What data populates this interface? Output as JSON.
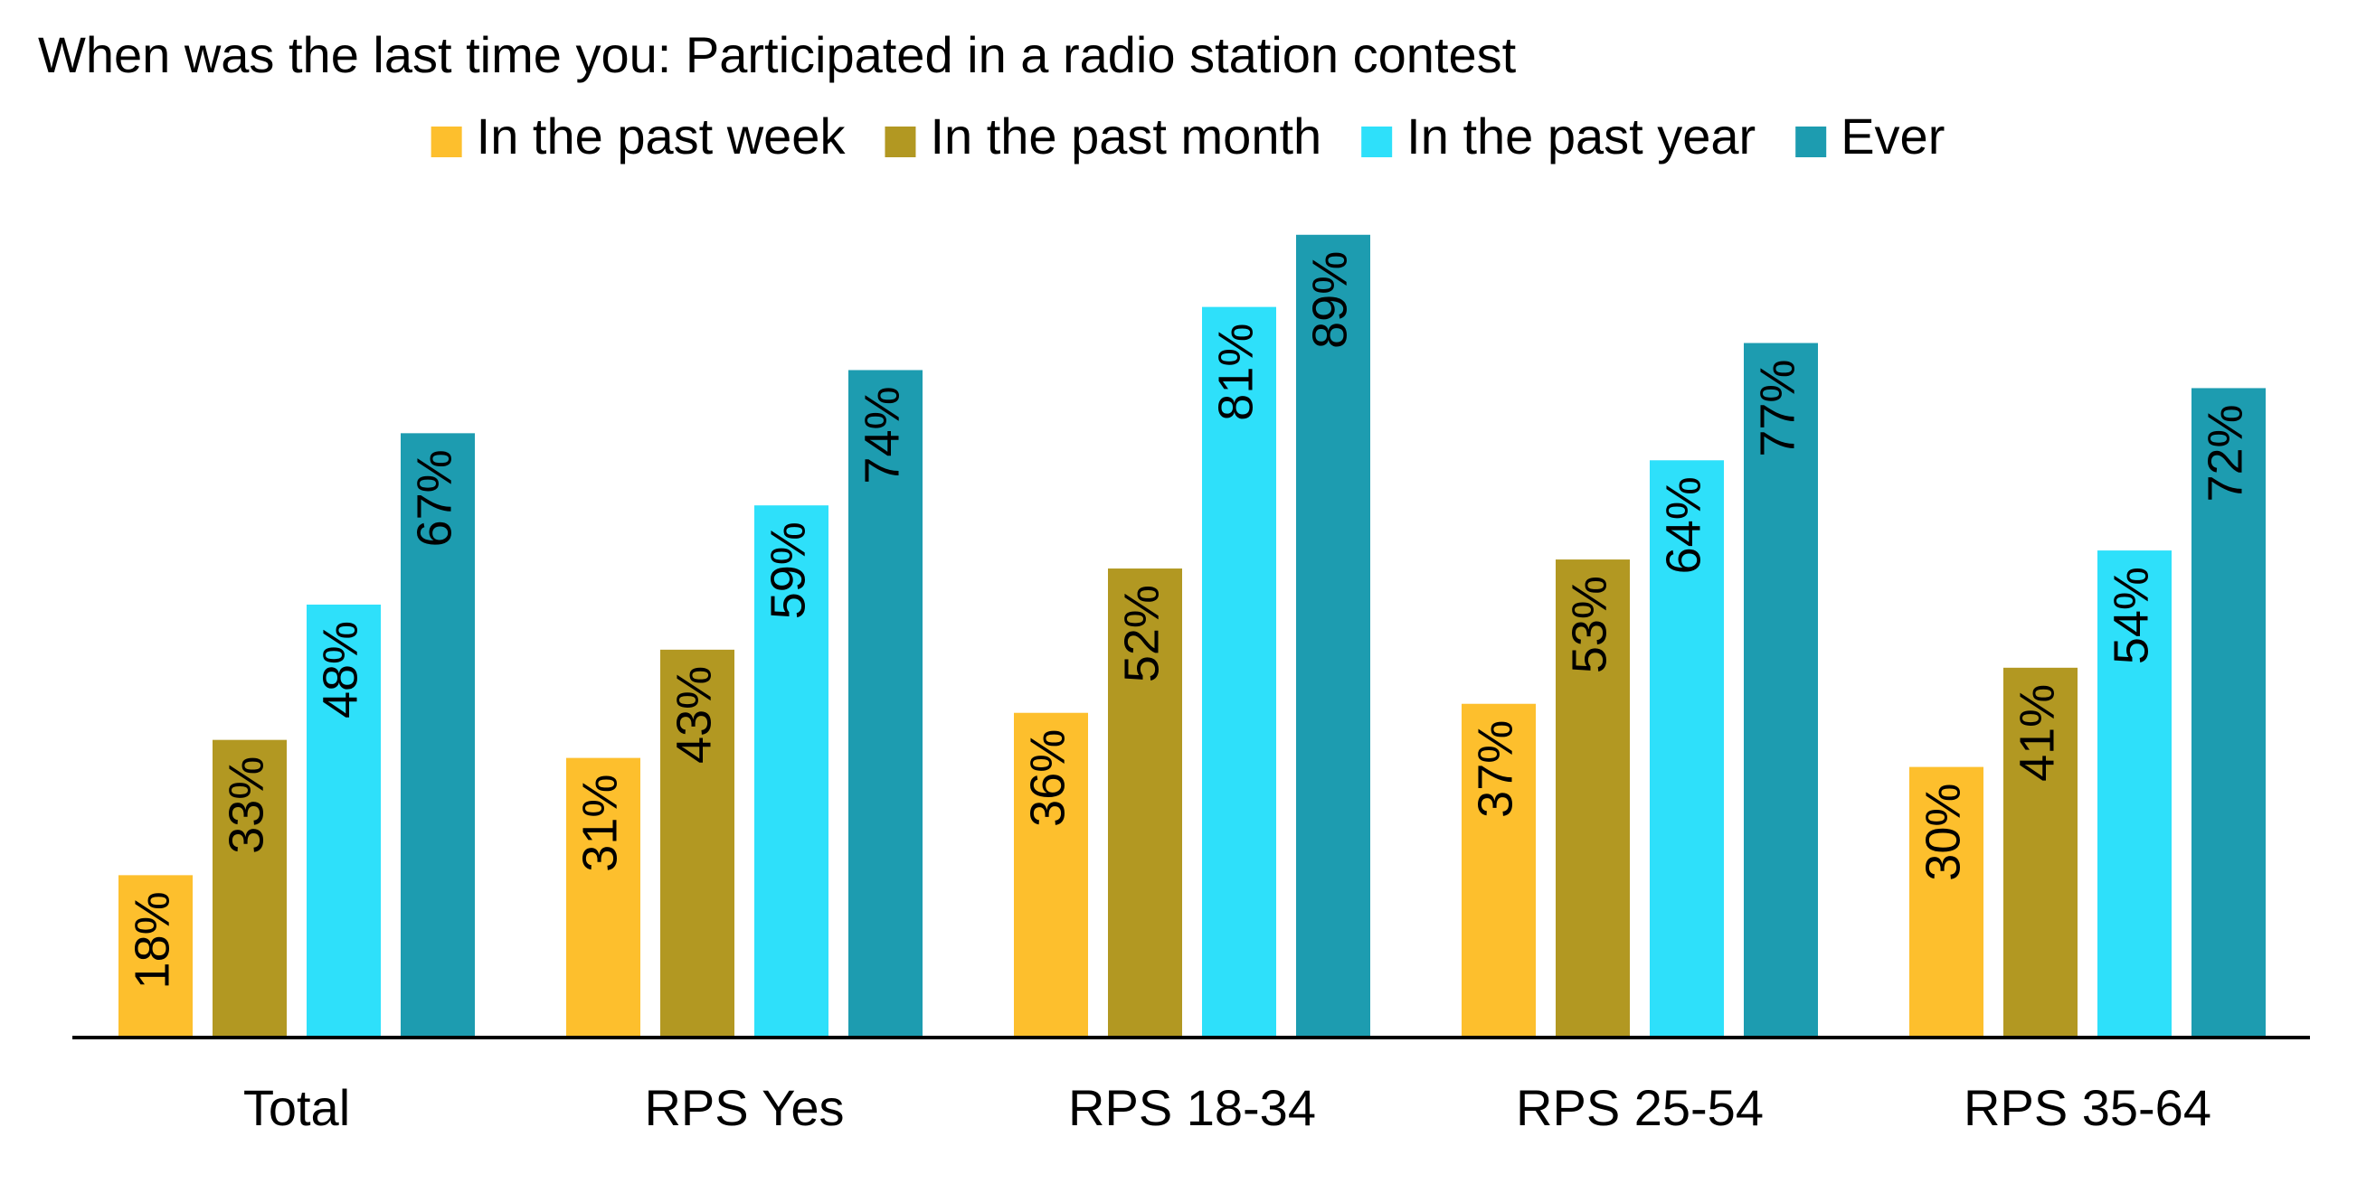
{
  "chart_data": {
    "type": "bar",
    "title": "When was the last time you: Participated in a radio station contest",
    "categories": [
      "Total",
      "RPS Yes",
      "RPS 18-34",
      "RPS 25-54",
      "RPS 35-64"
    ],
    "series": [
      {
        "name": "In the past week",
        "color": "#FDBF2D",
        "values": [
          18,
          31,
          36,
          37,
          30
        ],
        "labels": [
          "18%",
          "31%",
          "36%",
          "37%",
          "30%"
        ]
      },
      {
        "name": "In the past month",
        "color": "#B29822",
        "values": [
          33,
          43,
          52,
          53,
          41
        ],
        "labels": [
          "33%",
          "43%",
          "52%",
          "53%",
          "41%"
        ]
      },
      {
        "name": "In the past year",
        "color": "#2EE0FA",
        "values": [
          48,
          59,
          81,
          64,
          54
        ],
        "labels": [
          "48%",
          "59%",
          "81%",
          "64%",
          "54%"
        ]
      },
      {
        "name": "Ever",
        "color": "#1D9CB0",
        "values": [
          67,
          74,
          89,
          77,
          72
        ],
        "labels": [
          "67%",
          "74%",
          "89%",
          "77%",
          "72%"
        ]
      }
    ],
    "ylim": [
      0,
      100
    ],
    "grid": false,
    "legend_position": "top-center",
    "axis_color": "#000000"
  }
}
